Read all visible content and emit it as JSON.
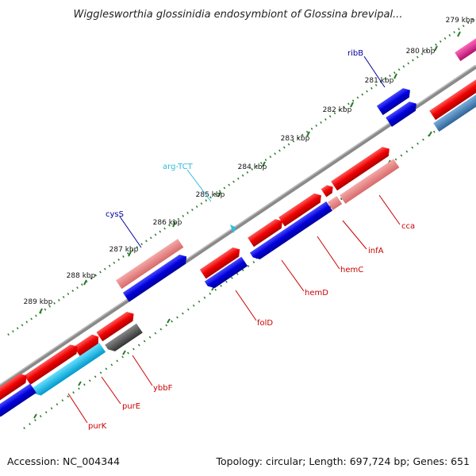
{
  "title": "Wigglesworthia glossinidia endosymbiont of Glossina brevipal...",
  "footer": {
    "accession": "Accession: NC_004344",
    "stats": "Topology: circular; Length: 697,724 bp; Genes: 651"
  },
  "colors": {
    "forward_cds": "#ee0000",
    "reverse_cds": "#0000dd",
    "pink_block": "#e88080",
    "cyan_block": "#00b8ee",
    "gray_block": "#555555",
    "steel_block": "#4682b4",
    "magenta_block": "#e0208f",
    "backbone": "#8a8a8a",
    "tick": "#2a7a2a",
    "label_red": "#cc0000",
    "label_blue": "#000099",
    "label_cyan": "#33bbdd"
  },
  "kbp_labels": [
    "279 kbp",
    "280 kbp",
    "281 kbp",
    "282 kbp",
    "283 kbp",
    "284 kbp",
    "285 kbp",
    "286 kbp",
    "287 kbp",
    "288 kbp",
    "289 kbp"
  ],
  "genes": [
    "ribB",
    "arg-TCT",
    "cysS",
    "cca",
    "infA",
    "hemC",
    "hemD",
    "folD",
    "ybbF",
    "purE",
    "purK"
  ]
}
